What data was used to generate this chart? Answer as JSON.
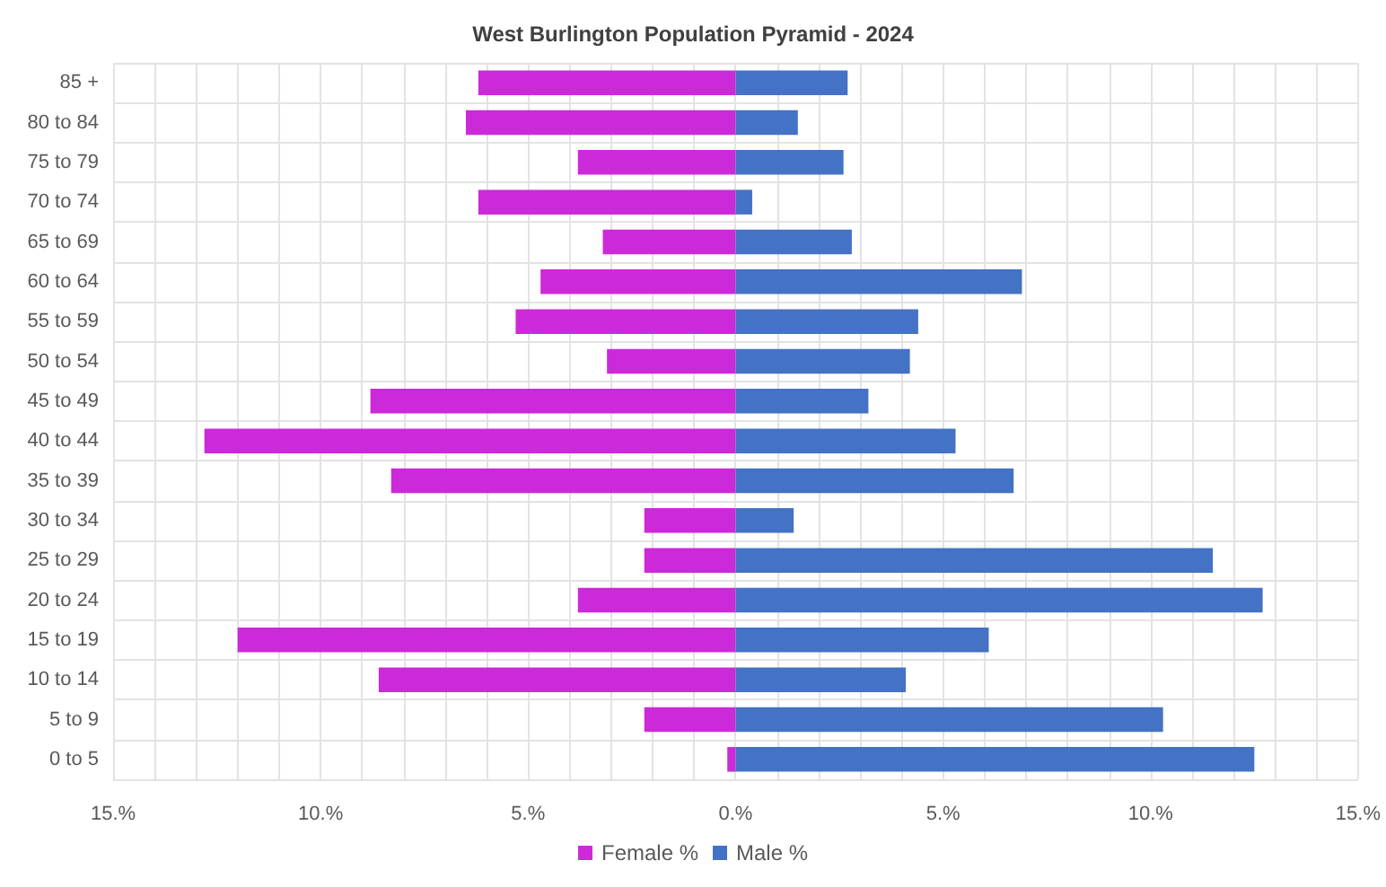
{
  "chart_data": {
    "type": "bar",
    "orientation": "horizontal",
    "title": "West Burlington Population Pyramid - 2024",
    "categories": [
      "85 +",
      "80 to 84",
      "75 to 79",
      "70 to 74",
      "65 to 69",
      "60 to 64",
      "55 to 59",
      "50 to 54",
      "45 to 49",
      "40 to 44",
      "35 to 39",
      "30 to 34",
      "25 to 29",
      "20 to 24",
      "15 to 19",
      "10 to 14",
      "5 to 9",
      "0 to 5"
    ],
    "series": [
      {
        "name": "Female %",
        "color": "#cc29d9",
        "values": [
          -6.2,
          -6.5,
          -3.8,
          -6.2,
          -3.2,
          -4.7,
          -5.3,
          -3.1,
          -8.8,
          -12.8,
          -8.3,
          -2.2,
          -2.2,
          -3.8,
          -12.0,
          -8.6,
          -2.2,
          -0.2
        ]
      },
      {
        "name": "Male %",
        "color": "#4472c4",
        "values": [
          2.7,
          1.5,
          2.6,
          0.4,
          2.8,
          6.9,
          4.4,
          4.2,
          3.2,
          5.3,
          6.7,
          1.4,
          11.5,
          12.7,
          6.1,
          4.1,
          10.3,
          12.5
        ]
      }
    ],
    "xlim": [
      -15,
      15
    ],
    "xticks": [
      {
        "value": -15,
        "label": "15.%"
      },
      {
        "value": -14,
        "label": null
      },
      {
        "value": -13,
        "label": null
      },
      {
        "value": -12,
        "label": null
      },
      {
        "value": -11,
        "label": null
      },
      {
        "value": -10,
        "label": "10.%"
      },
      {
        "value": -9,
        "label": null
      },
      {
        "value": -8,
        "label": null
      },
      {
        "value": -7,
        "label": null
      },
      {
        "value": -6,
        "label": null
      },
      {
        "value": -5,
        "label": "5.%"
      },
      {
        "value": -4,
        "label": null
      },
      {
        "value": -3,
        "label": null
      },
      {
        "value": -2,
        "label": null
      },
      {
        "value": -1,
        "label": null
      },
      {
        "value": 0,
        "label": "0.%"
      },
      {
        "value": 1,
        "label": null
      },
      {
        "value": 2,
        "label": null
      },
      {
        "value": 3,
        "label": null
      },
      {
        "value": 4,
        "label": null
      },
      {
        "value": 5,
        "label": "5.%"
      },
      {
        "value": 6,
        "label": null
      },
      {
        "value": 7,
        "label": null
      },
      {
        "value": 8,
        "label": null
      },
      {
        "value": 9,
        "label": null
      },
      {
        "value": 10,
        "label": "10.%"
      },
      {
        "value": 11,
        "label": null
      },
      {
        "value": 12,
        "label": null
      },
      {
        "value": 13,
        "label": null
      },
      {
        "value": 14,
        "label": null
      },
      {
        "value": 15,
        "label": "15.%"
      }
    ],
    "stacked": true,
    "grid": true,
    "legend": "bottom"
  }
}
